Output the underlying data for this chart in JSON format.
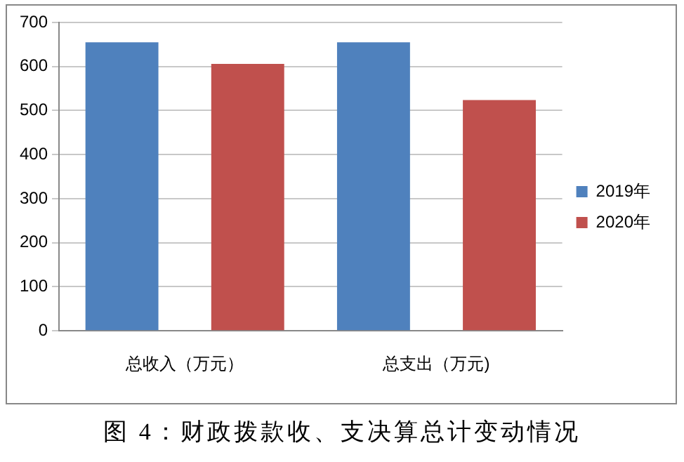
{
  "chart_data": {
    "type": "bar",
    "title": "图 4：财政拨款收、支决算总计变动情况",
    "categories": [
      "总收入（万元）",
      "总支出（万元)"
    ],
    "series": [
      {
        "name": "2019年",
        "color": "#4f81bd",
        "values": [
          655,
          655
        ]
      },
      {
        "name": "2020年",
        "color": "#c0504d",
        "values": [
          606,
          524
        ]
      }
    ],
    "ylim": [
      0,
      700
    ],
    "yticks": [
      0,
      100,
      200,
      300,
      400,
      500,
      600,
      700
    ],
    "grid": "y",
    "legend": "right"
  }
}
